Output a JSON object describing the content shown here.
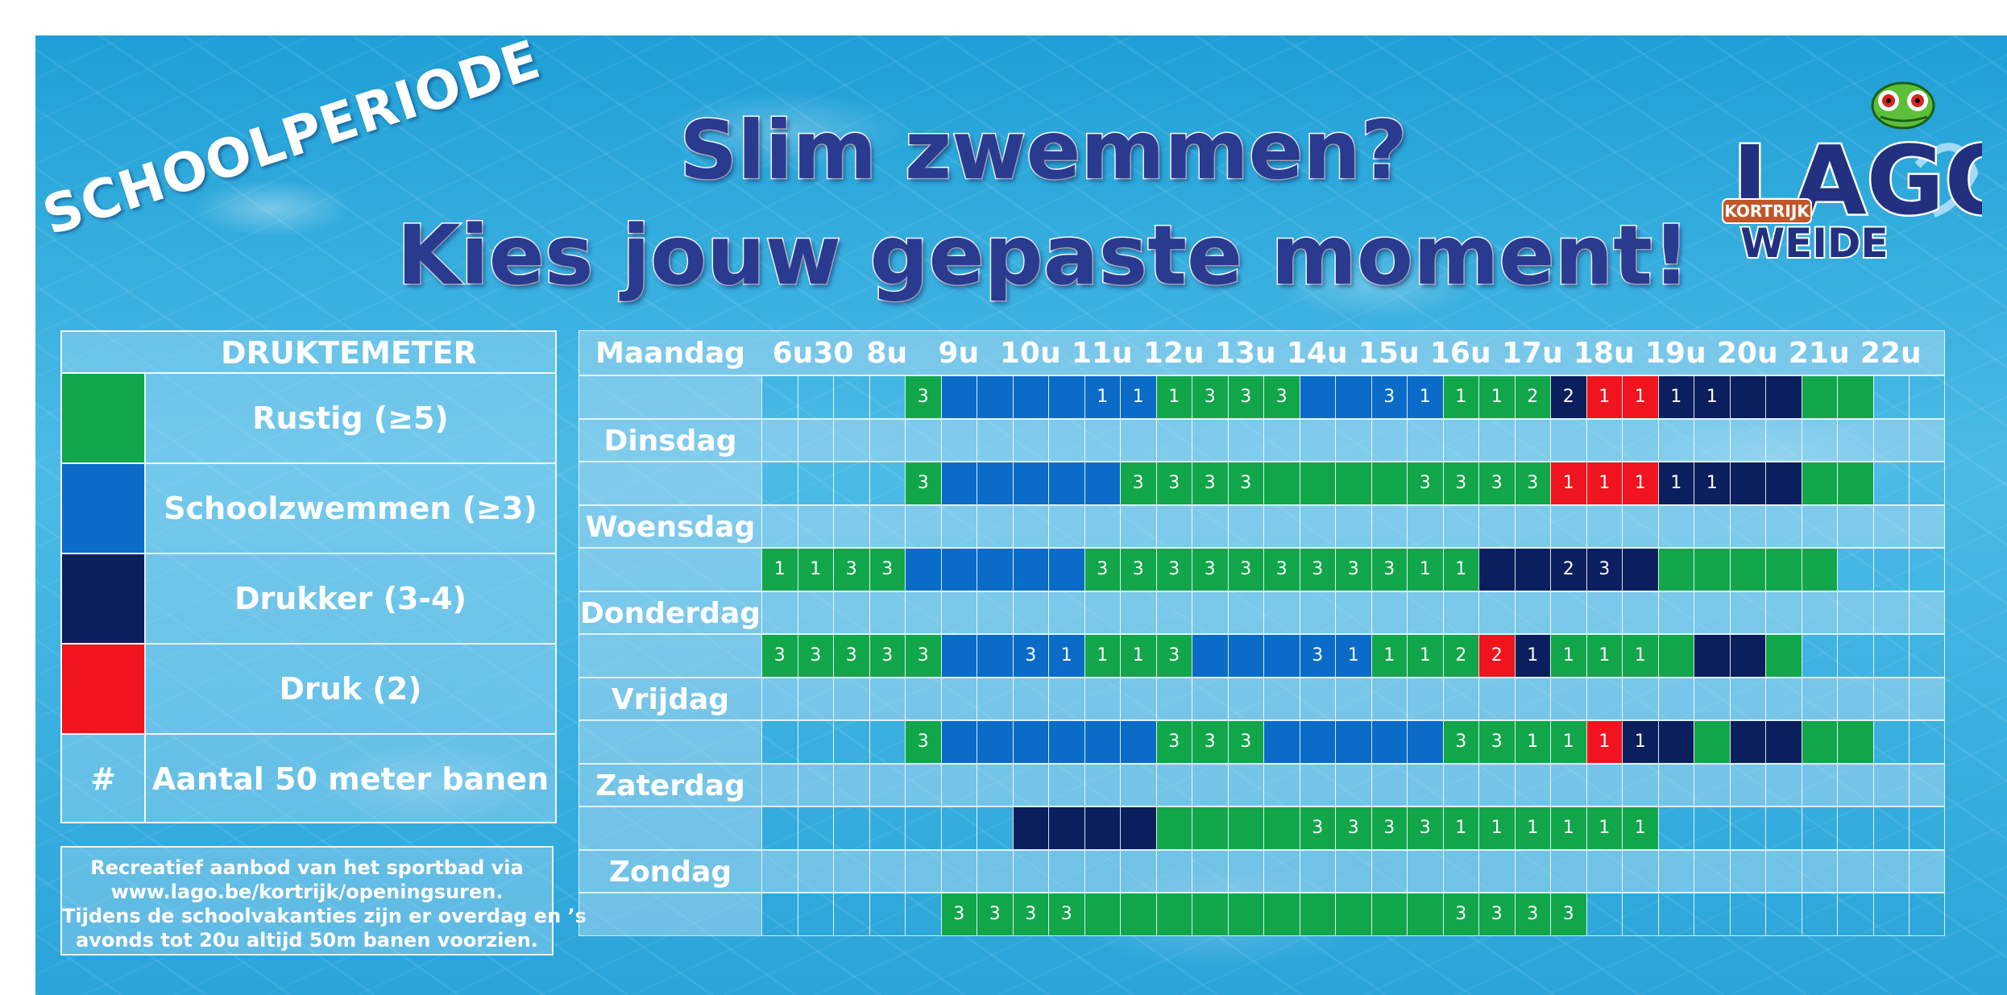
{
  "tag": "SCHOOLPERIODE",
  "title_line1": "Slim zwemmen?",
  "title_line2": "Kies jouw gepaste moment!",
  "logo": {
    "word": "LAGO",
    "city": "KORTRIJK",
    "sub": "WEIDE",
    "mascot": "frog-icon"
  },
  "colors": {
    "green": "#12a64a",
    "blue": "#0a6cc8",
    "dark": "#0b1f5e",
    "red": "#f0141e",
    "empty": "transparent"
  },
  "legend": {
    "title": "DRUKTEMETER",
    "items": [
      {
        "key": "green",
        "label": "Rustig (≥5)"
      },
      {
        "key": "blue",
        "label": "Schoolzwemmen (≥3)"
      },
      {
        "key": "dark",
        "label": "Drukker (3-4)"
      },
      {
        "key": "red",
        "label": "Druk (2)"
      },
      {
        "key": "empty",
        "symbol": "#",
        "label": "Aantal 50 meter banen"
      }
    ]
  },
  "note": [
    "Recreatief aanbod van het sportbad via",
    "www.lago.be/kortrijk/openingsuren.",
    "Tijdens de schoolvakanties zijn er overdag en ’s",
    "avonds tot 20u altijd 50m banen voorzien."
  ],
  "times": [
    "6u30",
    "8u",
    "9u",
    "10u",
    "11u",
    "12u",
    "13u",
    "14u",
    "15u",
    "16u",
    "17u",
    "18u",
    "19u",
    "20u",
    "21u",
    "22u"
  ],
  "days": [
    {
      "name": "Maandag",
      "cells": "....G3BBBBB1B1G1G3G3G3BBB3B1G1G1G2D2R1R1D1D1DDGG.."
    },
    {
      "name": "Dinsdag",
      "cells": "....G3BBBBBG3G3G3G3GGGGG3G3G3G3R1R1R1D1D1DDGG.."
    },
    {
      "name": "Woensdag",
      "cells": "G1G1G3G3BBBBBG3G3G3G3G3G3G3G3G3G1G1DDD2D3DGGGGG.."
    },
    {
      "name": "Donderdag",
      "cells": "G3G3G3G3G3BBB3B1G1G1G3BBBB3B1G1G1G2R2D1G1G1G1GDDG.."
    },
    {
      "name": "Vrijdag",
      "cells": "....G3BBBBBBG3G3G3BBBBBG3G3G1G1R1D1DGDDGG.."
    },
    {
      "name": "Zaterdag",
      "cells": ".......DDDDGGGGG3G3G3G3G1G1G1G1G1G1.........."
    },
    {
      "name": "Zondag",
      "cells": ".....G3G3G3G3GGGGGGGGGGG3G3G3G3..........."
    }
  ]
}
